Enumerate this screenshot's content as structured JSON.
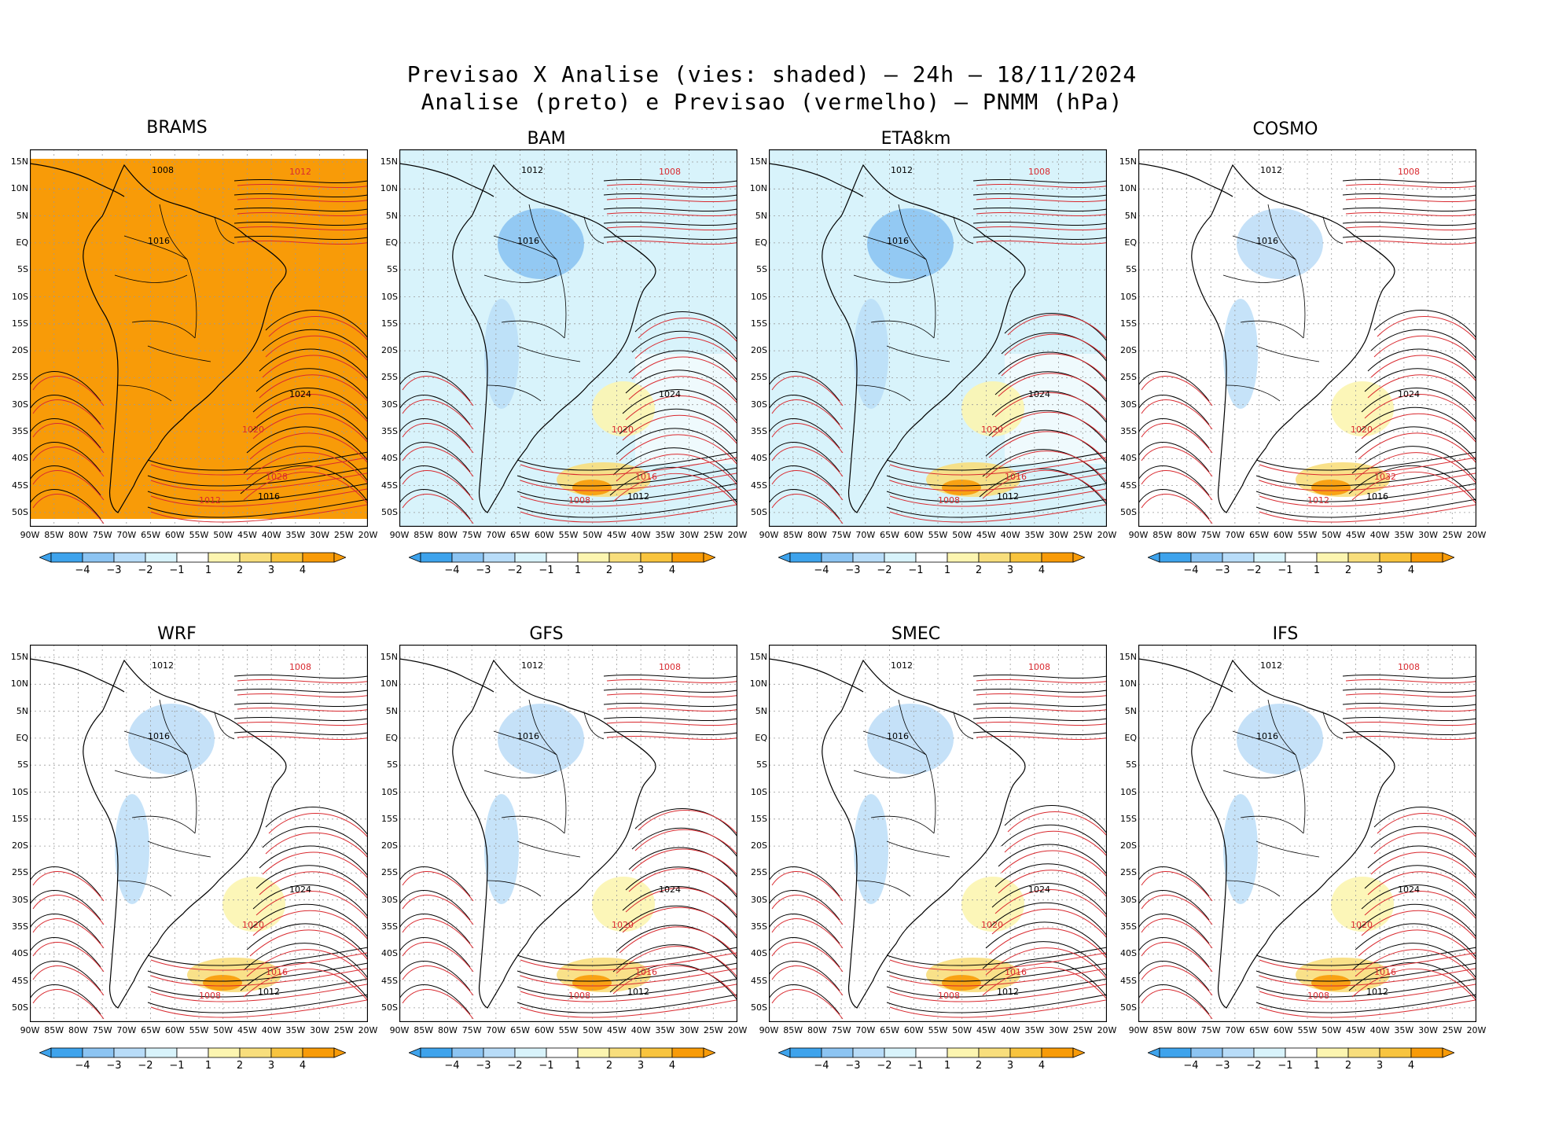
{
  "title": {
    "line1": "Previsao X Analise (vies: shaded) — 24h — 18/11/2024",
    "line2": "Analise (preto) e Previsao (vermelho) — PNMM (hPa)"
  },
  "colors": {
    "bias_neg4": "#3ea3ec",
    "bias_neg3": "#8cc4f2",
    "bias_neg2": "#b8dcf8",
    "bias_neg1": "#d8f3fb",
    "bias_zero": "#ffffff",
    "bias_pos1": "#fcf5b0",
    "bias_pos2": "#f8de7c",
    "bias_pos3": "#f8c43e",
    "bias_pos4": "#f89b08",
    "analysis_contour": "#000000",
    "forecast_contour": "#d9292f"
  },
  "lat_labels": [
    "15N",
    "10N",
    "5N",
    "EQ",
    "5S",
    "10S",
    "15S",
    "20S",
    "25S",
    "30S",
    "35S",
    "40S",
    "45S",
    "50S"
  ],
  "lon_labels": [
    "90W",
    "85W",
    "80W",
    "75W",
    "70W",
    "65W",
    "60W",
    "55W",
    "50W",
    "45W",
    "40W",
    "35W",
    "30W",
    "25W",
    "20W"
  ],
  "colorbar_labels": [
    "−4",
    "−3",
    "−2",
    "−1",
    "1",
    "2",
    "3",
    "4"
  ],
  "panels": [
    {
      "name": "BRAMS",
      "bg": "orange",
      "contours": [
        "1008",
        "1012",
        "1016",
        "1020",
        "1024",
        "1028",
        "1016",
        "1012"
      ]
    },
    {
      "name": "BAM",
      "bg": "cyan",
      "contours": [
        "1012",
        "1008",
        "1016",
        "1020",
        "1024",
        "1016",
        "1012",
        "1008"
      ]
    },
    {
      "name": "ETA8km",
      "bg": "cyan",
      "contours": [
        "1012",
        "1008",
        "1016",
        "1020",
        "1024",
        "1016",
        "1012",
        "1008"
      ]
    },
    {
      "name": "COSMO",
      "bg": "white",
      "contours": [
        "1012",
        "1008",
        "1016",
        "1020",
        "1024",
        "1032",
        "1016",
        "1012"
      ]
    },
    {
      "name": "WRF",
      "bg": "white",
      "contours": [
        "1012",
        "1008",
        "1016",
        "1020",
        "1024",
        "1016",
        "1012",
        "1008"
      ]
    },
    {
      "name": "GFS",
      "bg": "white",
      "contours": [
        "1012",
        "1008",
        "1016",
        "1020",
        "1024",
        "1016",
        "1012",
        "1008"
      ]
    },
    {
      "name": "SMEC",
      "bg": "white",
      "contours": [
        "1012",
        "1008",
        "1016",
        "1020",
        "1024",
        "1016",
        "1012",
        "1008"
      ]
    },
    {
      "name": "IFS",
      "bg": "white",
      "contours": [
        "1012",
        "1008",
        "1016",
        "1020",
        "1024",
        "1016",
        "1012",
        "1008"
      ]
    }
  ]
}
